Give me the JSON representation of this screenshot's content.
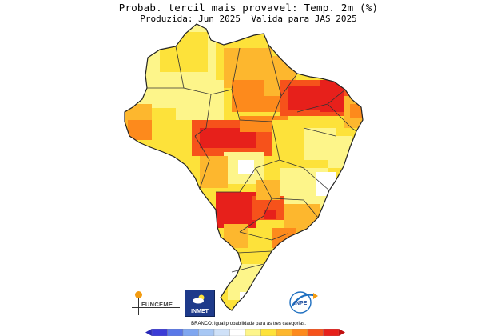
{
  "title": "Probab. tercil mais provavel: Temp. 2m (%)",
  "subtitle_left": "Produzida: Jun 2025",
  "subtitle_right": "Valida para JAS 2025",
  "note": "BRANCO: igual probabilidade para as tres categorias.",
  "logos": {
    "funceme": "FUNCEME",
    "inmet": "INMET",
    "inpe": "INPE"
  },
  "colors": {
    "light_yellow": "#fdf58a",
    "yellow": "#fde23a",
    "orange_yellow": "#fdb72e",
    "orange": "#fd8a1c",
    "red_orange": "#f6521b",
    "red": "#e7201b",
    "border": "#222222"
  },
  "colorbar": {
    "colors": [
      "#3b3bd6",
      "#5a78e8",
      "#7fa6f0",
      "#a7c7f4",
      "#cfe1f8",
      "#ffffff",
      "#fdf58a",
      "#fde23a",
      "#fdb72e",
      "#fd8a1c",
      "#f6521b",
      "#e7201b"
    ]
  }
}
